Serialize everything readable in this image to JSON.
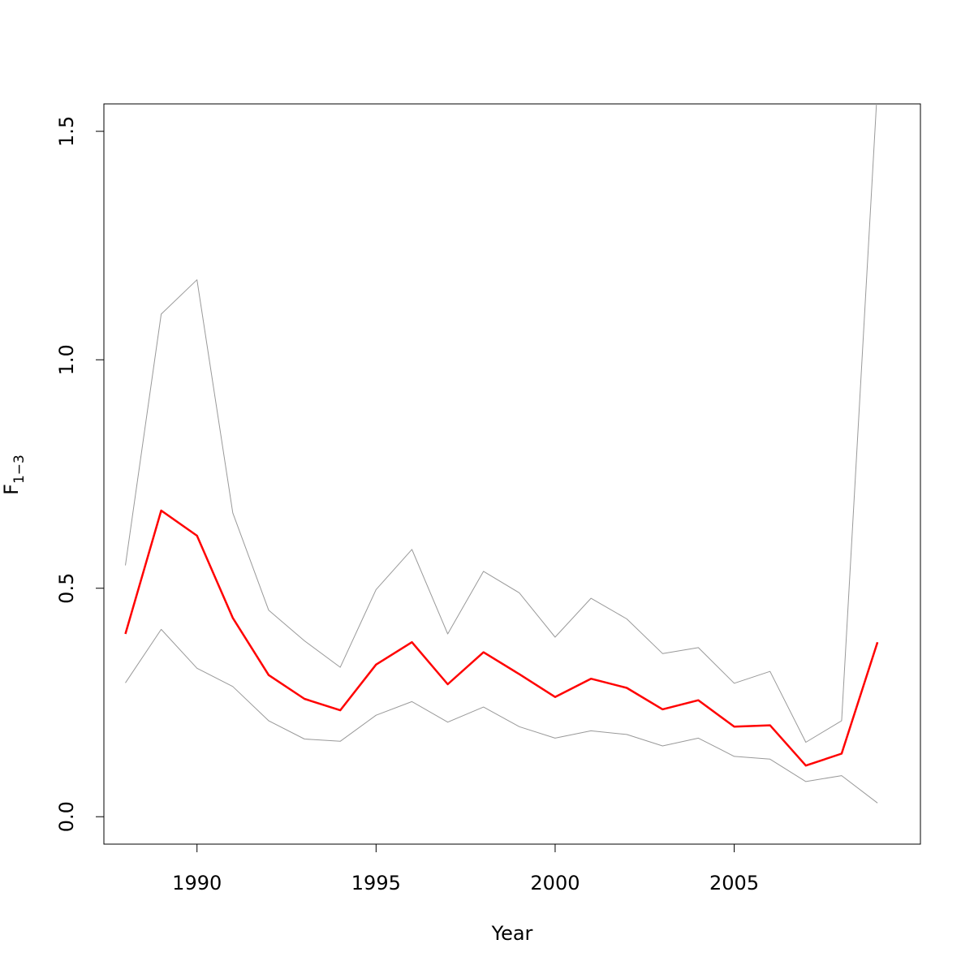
{
  "chart_data": {
    "type": "line",
    "xlabel": "Year",
    "ylabel": {
      "main": "F",
      "sub": "1−3"
    },
    "xlim": [
      1987.4,
      2010.2
    ],
    "ylim": [
      -0.06,
      1.56
    ],
    "x_ticks": [
      1990,
      1995,
      2000,
      2005
    ],
    "y_ticks": [
      0.0,
      0.5,
      1.0,
      1.5
    ],
    "x_tick_labels": [
      "1990",
      "1995",
      "2000",
      "2005"
    ],
    "y_tick_labels": [
      "0.0",
      "0.5",
      "1.0",
      "1.5"
    ],
    "grid": false,
    "legend": "none",
    "x": [
      1988,
      1989,
      1990,
      1991,
      1992,
      1993,
      1994,
      1995,
      1996,
      1997,
      1998,
      1999,
      2000,
      2001,
      2002,
      2003,
      2004,
      2005,
      2006,
      2007,
      2008,
      2009
    ],
    "series": [
      {
        "role": "estimate",
        "color": "#ff0000",
        "values": [
          0.4,
          0.67,
          0.615,
          0.435,
          0.31,
          0.258,
          0.233,
          0.333,
          0.382,
          0.29,
          0.36,
          0.312,
          0.262,
          0.302,
          0.282,
          0.235,
          0.255,
          0.197,
          0.2,
          0.112,
          0.138,
          0.382
        ]
      },
      {
        "role": "upper",
        "color": "#999999",
        "values": [
          0.55,
          1.1,
          1.175,
          0.665,
          0.452,
          0.385,
          0.327,
          0.497,
          0.585,
          0.4,
          0.537,
          0.49,
          0.393,
          0.478,
          0.433,
          0.357,
          0.37,
          0.292,
          0.318,
          0.163,
          0.21,
          1.6
        ]
      },
      {
        "role": "lower",
        "color": "#999999",
        "values": [
          0.293,
          0.41,
          0.325,
          0.285,
          0.21,
          0.17,
          0.165,
          0.222,
          0.252,
          0.207,
          0.24,
          0.197,
          0.172,
          0.188,
          0.18,
          0.155,
          0.172,
          0.132,
          0.126,
          0.077,
          0.09,
          0.03
        ]
      }
    ]
  }
}
